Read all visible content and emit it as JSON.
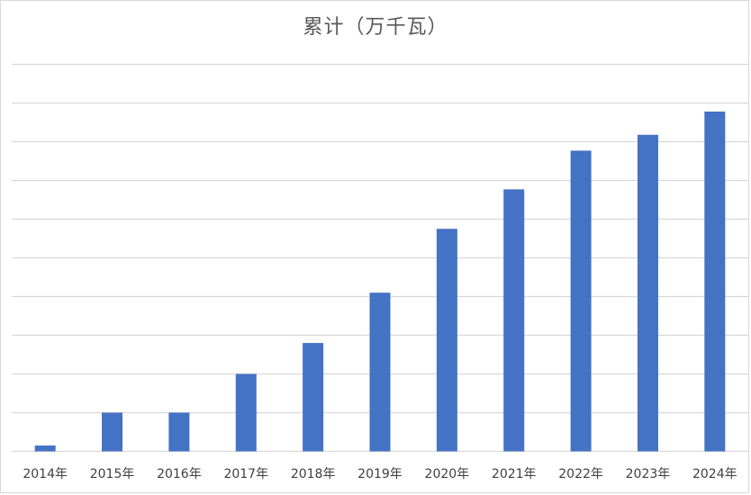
{
  "chart_data": {
    "type": "bar",
    "title": "累计（万千瓦）",
    "categories": [
      "2014年",
      "2015年",
      "2016年",
      "2017年",
      "2018年",
      "2019年",
      "2020年",
      "2021年",
      "2022年",
      "2023年",
      "2024年"
    ],
    "values": [
      0.15,
      1.0,
      1.0,
      2.0,
      2.8,
      4.1,
      5.75,
      6.77,
      7.77,
      8.18,
      8.78
    ],
    "ylim": [
      0,
      10
    ],
    "grid": true,
    "y_tick_labels_shown": false,
    "legend": "none",
    "bar_color": "#4472c4",
    "grid_color": "#d9d9d9"
  }
}
